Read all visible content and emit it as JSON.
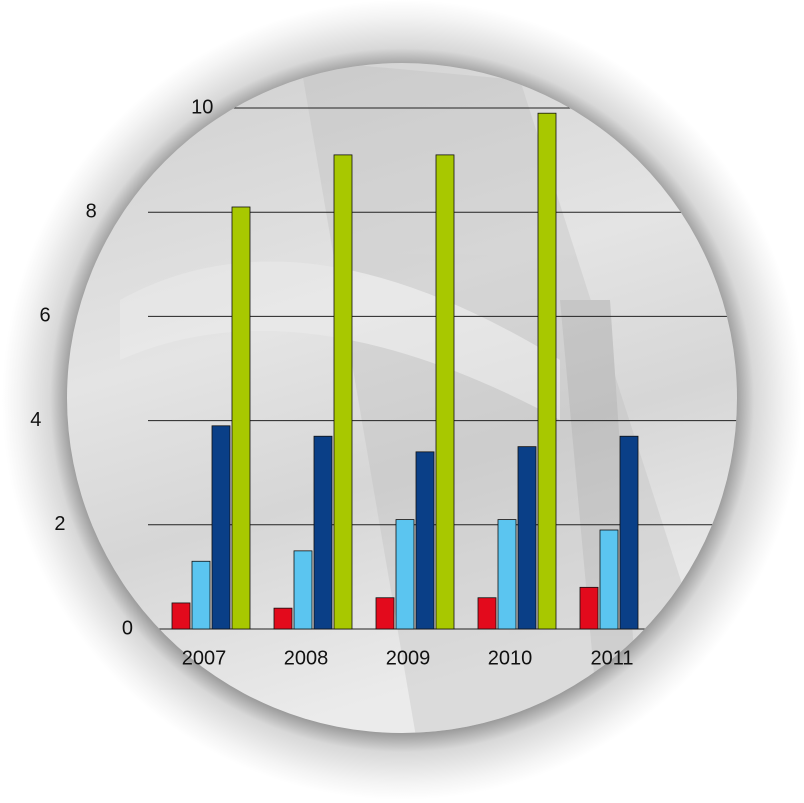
{
  "chart_data": {
    "type": "bar",
    "categories": [
      "2007",
      "2008",
      "2009",
      "2010",
      "2011"
    ],
    "series": [
      {
        "color": "#e30a1c",
        "values": [
          0.5,
          0.4,
          0.6,
          0.6,
          0.8
        ]
      },
      {
        "color": "#5bc5f0",
        "values": [
          1.3,
          1.5,
          2.1,
          2.1,
          1.9
        ]
      },
      {
        "color": "#0a3f87",
        "values": [
          3.9,
          3.7,
          3.4,
          3.5,
          3.7
        ]
      },
      {
        "color": "#a8c800",
        "values": [
          8.1,
          9.1,
          9.1,
          9.9,
          null
        ]
      }
    ],
    "ylim": [
      0,
      10
    ],
    "yticks": [
      0,
      2,
      4,
      6,
      8,
      10
    ],
    "grid": true
  }
}
